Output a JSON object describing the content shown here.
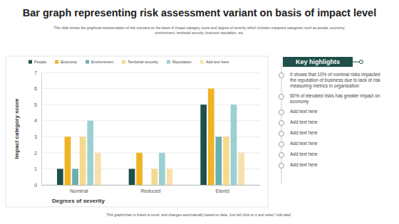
{
  "chart_data": {
    "type": "bar",
    "title": "Bar graph representing risk assessment variant on basis of impact level",
    "subtitle": "This slide shows the graphical representation of risk scenario on the basis of impact category score and degree of severity which includes impacted categories such as people, economy, environment, territorial security, business reputation, etc.",
    "x_label": "Degrees of severity",
    "y_label": "Impact category score",
    "categories": [
      "Nominal",
      "Reduced",
      "Elevtd"
    ],
    "series": [
      {
        "name": "People",
        "color": "#1f4f4b",
        "values": [
          1,
          1,
          5
        ]
      },
      {
        "name": "Economy",
        "color": "#f0b323",
        "values": [
          3,
          2,
          6
        ]
      },
      {
        "name": "Environment",
        "color": "#6aaeb2",
        "values": [
          1,
          0,
          3
        ]
      },
      {
        "name": "Territorial security",
        "color": "#f6d98c",
        "values": [
          3,
          1,
          3
        ]
      },
      {
        "name": "Reputation",
        "color": "#9bd0d3",
        "values": [
          4,
          2,
          5
        ]
      },
      {
        "name": "Add text here",
        "color": "#f8e0ad",
        "values": [
          2,
          1,
          2
        ]
      }
    ],
    "ylim": [
      0,
      7
    ],
    "yticks": [
      0,
      1,
      2,
      3,
      4,
      5,
      6,
      7
    ],
    "grid": true,
    "legend": "top"
  },
  "highlights": {
    "title": "Key highlights",
    "items": [
      "It shows that 10% of nominal risks impacted the reputation of business due to lack of risk measuring metrics in organization",
      "60% of elevated risks has greater impact on economy",
      "Add text here",
      "Add text here",
      "Add text here",
      "Add text here",
      "Add text here",
      "Add text here"
    ]
  },
  "footer": "This graph/chart is linked to excel, and changes automatically based on data. Just left click on it and select \"edit data\"."
}
